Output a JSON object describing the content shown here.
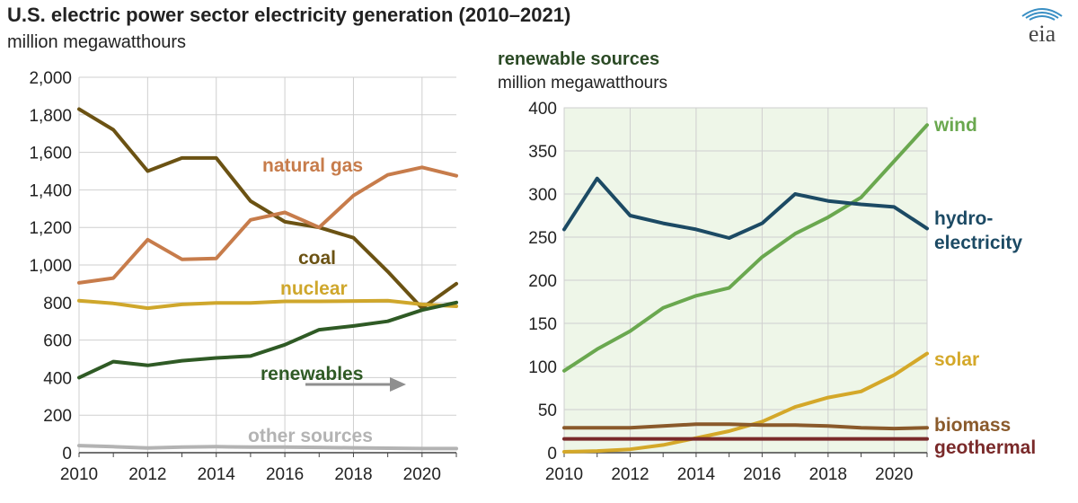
{
  "title": "U.S. electric power sector electricity generation (2010–2021)",
  "unit": "million megawatthours",
  "logo_text": "eia",
  "colors": {
    "coal": "#6b5213",
    "natural_gas": "#c77c4b",
    "nuclear": "#cfa72c",
    "renewables": "#2f5a25",
    "other": "#b3b3b3",
    "wind": "#6aa84f",
    "hydro": "#1c4a64",
    "solar": "#d4a829",
    "biomass": "#8a5a2b",
    "geothermal": "#7a2a2a",
    "panel_bg": "#eef6e8",
    "grid": "#cfcfcf",
    "arrow": "#8f8f8f"
  },
  "chart_data": [
    {
      "type": "line",
      "x": [
        2010,
        2011,
        2012,
        2013,
        2014,
        2015,
        2016,
        2017,
        2018,
        2019,
        2020,
        2021
      ],
      "ylim": [
        0,
        2000
      ],
      "xlim": [
        2010,
        2021
      ],
      "x_ticks": [
        "2010",
        "2012",
        "2014",
        "2016",
        "2018",
        "2020"
      ],
      "y_ticks": [
        "0",
        "200",
        "400",
        "600",
        "800",
        "1,000",
        "1,200",
        "1,400",
        "1,600",
        "1,800",
        "2,000"
      ],
      "grid": true,
      "series": [
        {
          "key": "coal",
          "name": "coal",
          "values": [
            1830,
            1720,
            1500,
            1570,
            1570,
            1340,
            1230,
            1200,
            1145,
            965,
            770,
            900
          ]
        },
        {
          "key": "natural_gas",
          "name": "natural gas",
          "values": [
            905,
            930,
            1135,
            1030,
            1035,
            1240,
            1280,
            1200,
            1370,
            1480,
            1520,
            1475
          ]
        },
        {
          "key": "nuclear",
          "name": "nuclear",
          "values": [
            810,
            795,
            770,
            790,
            798,
            798,
            806,
            806,
            808,
            810,
            790,
            780
          ]
        },
        {
          "key": "renewables",
          "name": "renewables",
          "values": [
            400,
            485,
            465,
            490,
            505,
            515,
            575,
            655,
            675,
            700,
            760,
            800
          ]
        },
        {
          "key": "other",
          "name": "other sources",
          "values": [
            38,
            32,
            25,
            30,
            32,
            30,
            30,
            28,
            26,
            24,
            22,
            22
          ]
        }
      ]
    },
    {
      "type": "line",
      "title": "renewable sources",
      "unit": "million megawatthours",
      "x": [
        2010,
        2011,
        2012,
        2013,
        2014,
        2015,
        2016,
        2017,
        2018,
        2019,
        2020,
        2021
      ],
      "ylim": [
        0,
        400
      ],
      "xlim": [
        2010,
        2021
      ],
      "x_ticks": [
        "2010",
        "2012",
        "2014",
        "2016",
        "2018",
        "2020"
      ],
      "y_ticks": [
        "0",
        "50",
        "100",
        "150",
        "200",
        "250",
        "300",
        "350",
        "400"
      ],
      "grid": true,
      "series": [
        {
          "key": "wind",
          "name": "wind",
          "values": [
            95,
            120,
            141,
            168,
            182,
            191,
            227,
            254,
            273,
            296,
            338,
            380
          ]
        },
        {
          "key": "hydro",
          "name": "hydro-electricity",
          "values": [
            259,
            318,
            275,
            266,
            259,
            249,
            266,
            300,
            292,
            288,
            285,
            260
          ]
        },
        {
          "key": "solar",
          "name": "solar",
          "values": [
            1,
            2,
            4,
            9,
            17,
            25,
            36,
            53,
            64,
            71,
            90,
            115
          ]
        },
        {
          "key": "biomass",
          "name": "biomass",
          "values": [
            29,
            29,
            29,
            31,
            33,
            33,
            32,
            32,
            31,
            29,
            28,
            29
          ]
        },
        {
          "key": "geothermal",
          "name": "geothermal",
          "values": [
            16,
            16,
            16,
            16,
            16,
            16,
            16,
            16,
            16,
            16,
            16,
            16
          ]
        }
      ]
    }
  ],
  "left_labels": {
    "natural_gas": "natural gas",
    "coal": "coal",
    "nuclear": "nuclear",
    "renewables": "renewables",
    "other": "other sources"
  },
  "right_labels": {
    "wind": "wind",
    "hydro_1": "hydro-",
    "hydro_2": "electricity",
    "solar": "solar",
    "biomass": "biomass",
    "geothermal": "geothermal"
  }
}
